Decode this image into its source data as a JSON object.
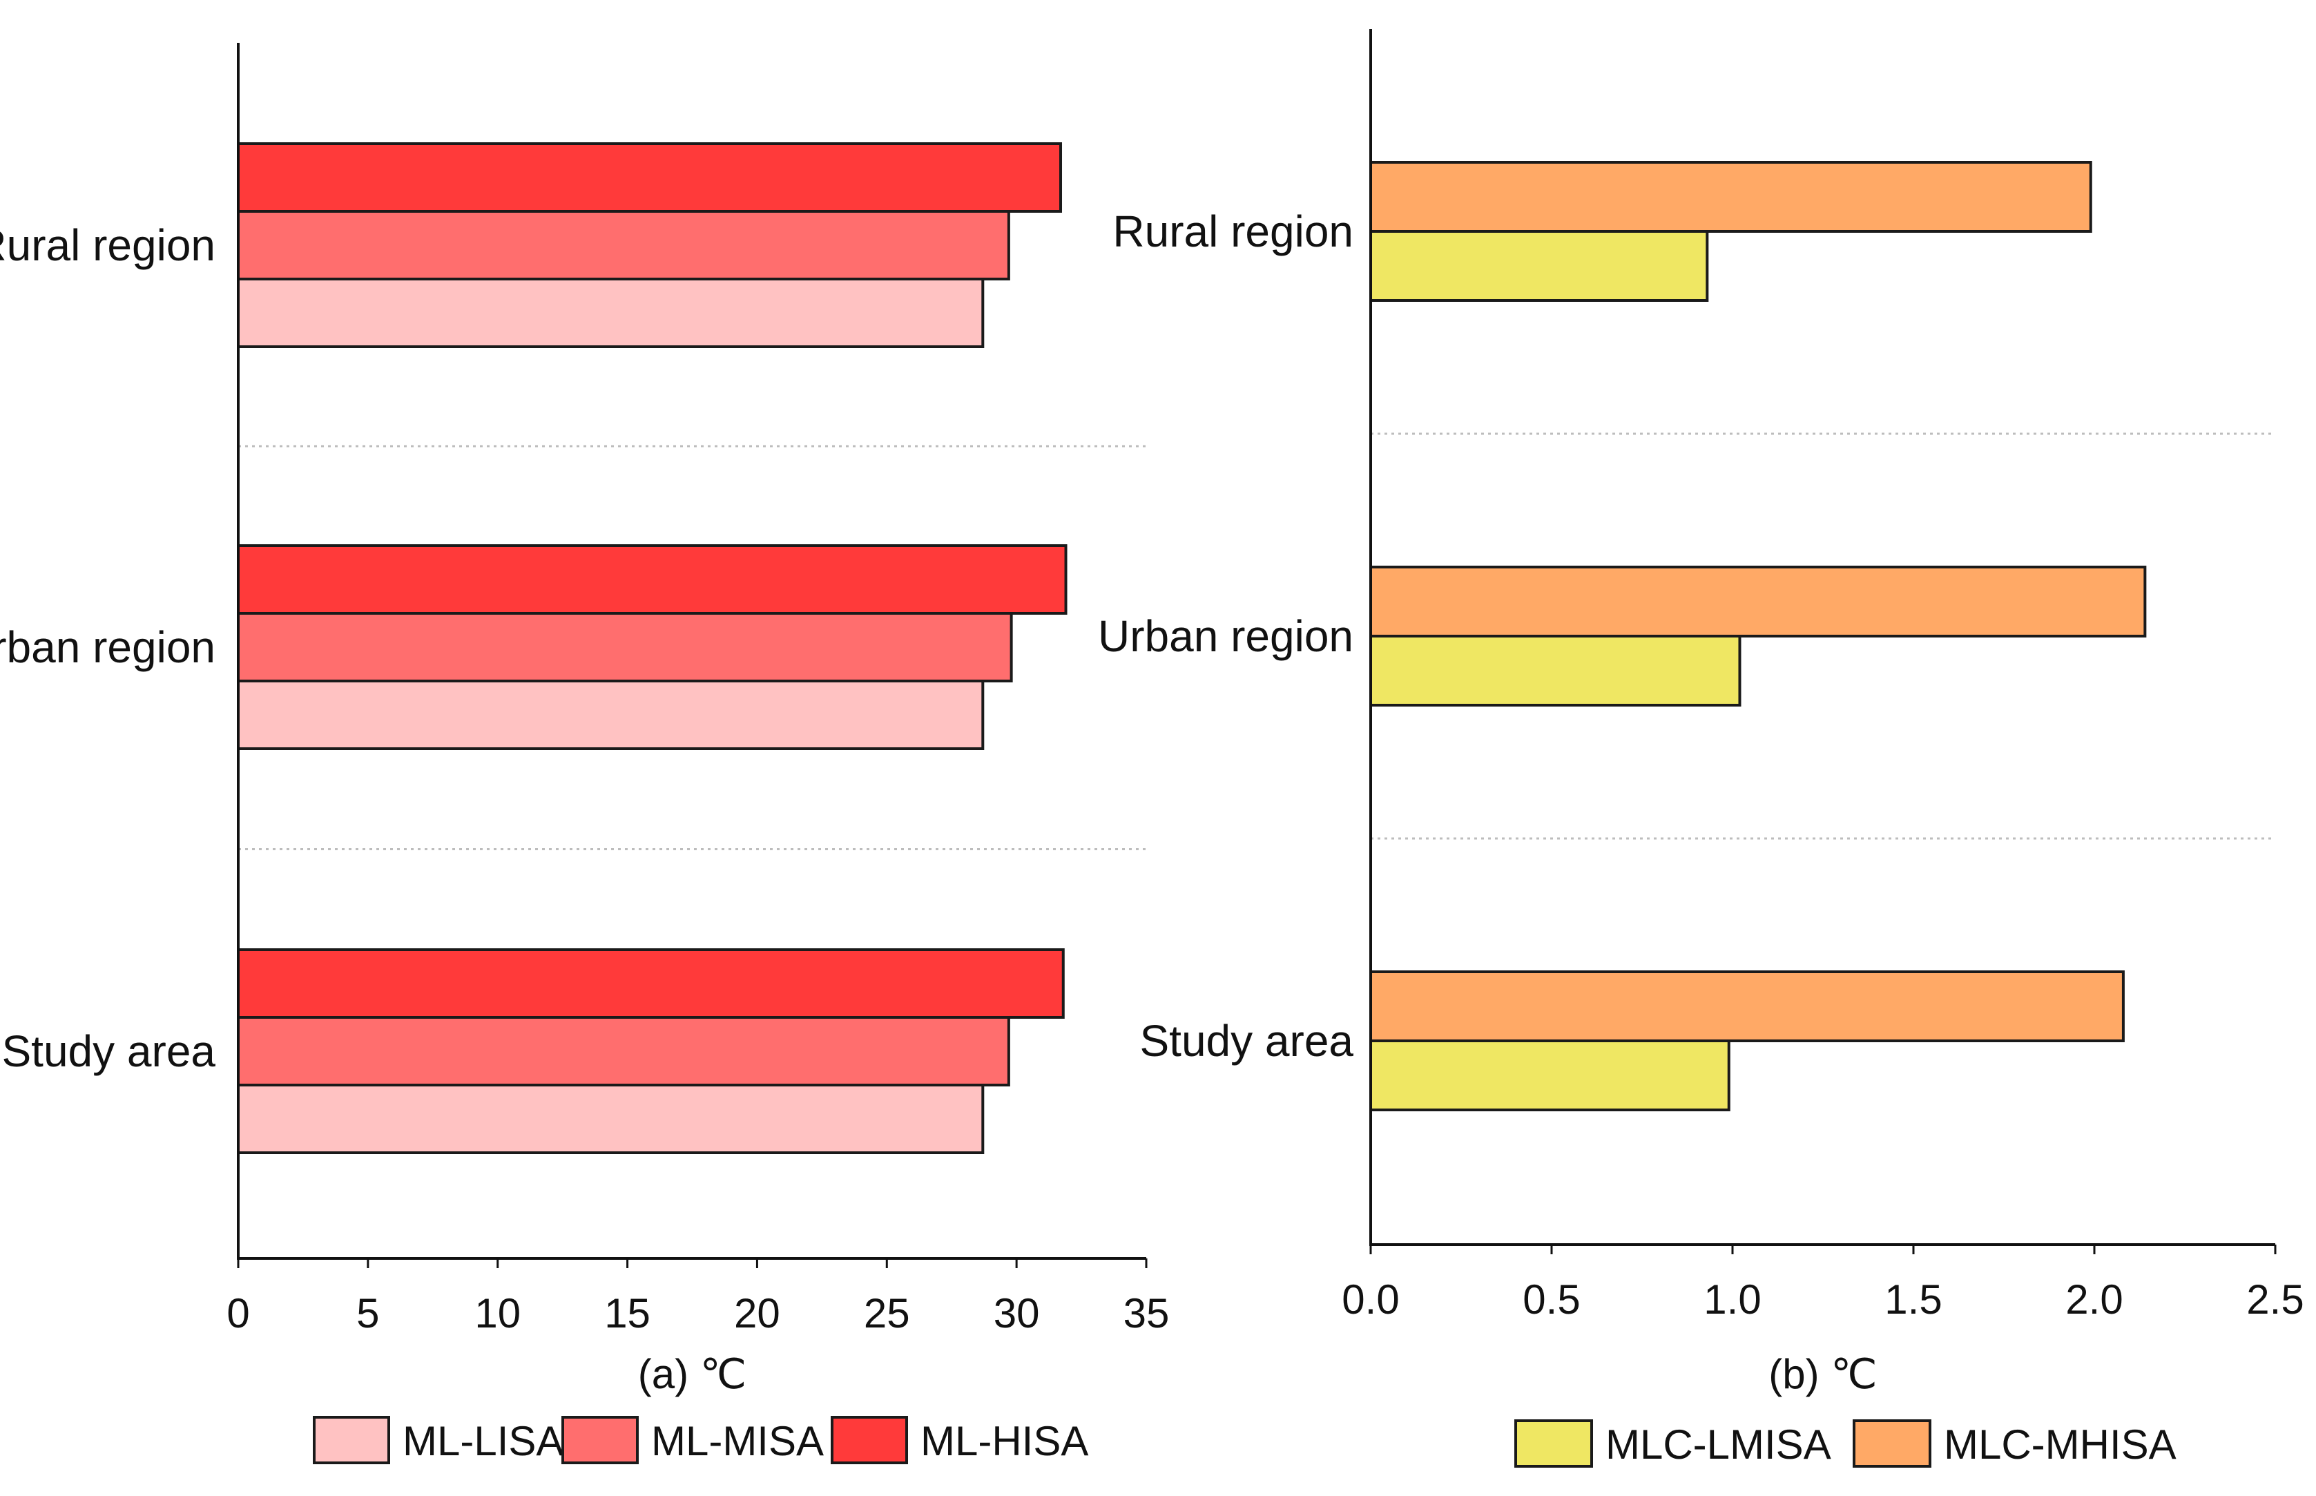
{
  "chart_data": [
    {
      "id": "a",
      "type": "bar",
      "orientation": "horizontal",
      "categories": [
        "Study area",
        "Urban region",
        "Rural region"
      ],
      "series": [
        {
          "name": "ML-LISA",
          "color": "#ffc2c2",
          "values": [
            28.7,
            28.7,
            28.7
          ]
        },
        {
          "name": "ML-MISA",
          "color": "#ff6e6e",
          "values": [
            29.7,
            29.8,
            29.7
          ]
        },
        {
          "name": "ML-HISA",
          "color": "#ff3a3a",
          "values": [
            31.8,
            31.9,
            31.7
          ]
        }
      ],
      "xlabel": "(a) ℃",
      "xlim": [
        0,
        35
      ],
      "xticks": [
        "0",
        "5",
        "10",
        "15",
        "20",
        "25",
        "30",
        "35"
      ],
      "legend_position": "bottom"
    },
    {
      "id": "b",
      "type": "bar",
      "orientation": "horizontal",
      "categories": [
        "Study area",
        "Urban region",
        "Rural region"
      ],
      "series": [
        {
          "name": "MLC-LMISA",
          "color": "#efe763",
          "values": [
            0.99,
            1.02,
            0.93
          ]
        },
        {
          "name": "MLC-MHISA",
          "color": "#ffa966",
          "values": [
            2.08,
            2.14,
            1.99
          ]
        }
      ],
      "xlabel": "(b) ℃",
      "xlim": [
        0,
        2.5
      ],
      "xticks": [
        "0.0",
        "0.5",
        "1.0",
        "1.5",
        "2.0",
        "2.5"
      ],
      "legend_position": "bottom"
    }
  ]
}
